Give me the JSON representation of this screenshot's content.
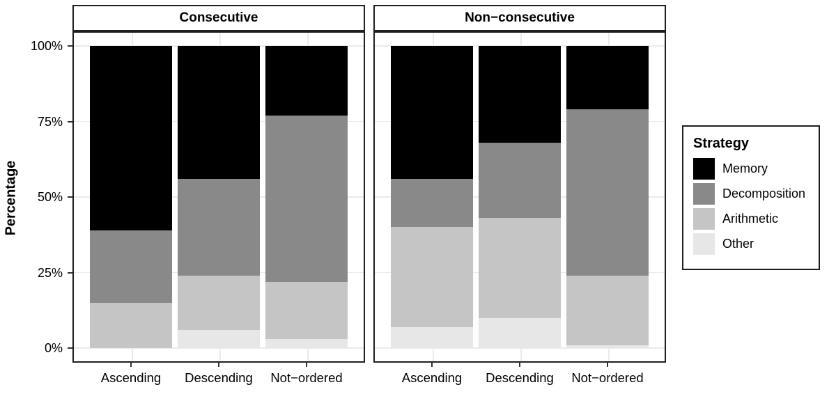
{
  "chart_data": {
    "type": "bar",
    "stacked": true,
    "units": "percent",
    "title": "",
    "ylabel": "Percentage",
    "xlabel": "",
    "ylim": [
      0,
      100
    ],
    "yticks": [
      0,
      25,
      50,
      75,
      100
    ],
    "ytick_labels": [
      "0%",
      "25%",
      "50%",
      "75%",
      "100%"
    ],
    "grid": "major horizontal lines and vertical category lines, light gray, no minor grid",
    "legend": {
      "title": "Strategy",
      "position": "right",
      "entries": [
        {
          "label": "Memory",
          "color": "#000000"
        },
        {
          "label": "Decomposition",
          "color": "#898989"
        },
        {
          "label": "Arithmetic",
          "color": "#c5c5c5"
        },
        {
          "label": "Other",
          "color": "#e7e7e7"
        }
      ]
    },
    "facets": [
      {
        "label": "Consecutive",
        "categories": [
          "Ascending",
          "Descending",
          "Not−ordered"
        ],
        "series": [
          {
            "name": "Memory",
            "values": [
              61,
              44,
              23
            ]
          },
          {
            "name": "Decomposition",
            "values": [
              24,
              32,
              55
            ]
          },
          {
            "name": "Arithmetic",
            "values": [
              15,
              18,
              19
            ]
          },
          {
            "name": "Other",
            "values": [
              0,
              6,
              3
            ]
          }
        ]
      },
      {
        "label": "Non−consecutive",
        "categories": [
          "Ascending",
          "Descending",
          "Not−ordered"
        ],
        "series": [
          {
            "name": "Memory",
            "values": [
              44,
              32,
              21
            ]
          },
          {
            "name": "Decomposition",
            "values": [
              16,
              25,
              55
            ]
          },
          {
            "name": "Arithmetic",
            "values": [
              33,
              33,
              23
            ]
          },
          {
            "name": "Other",
            "values": [
              7,
              10,
              1
            ]
          }
        ]
      }
    ],
    "colors": {
      "Memory": "#000000",
      "Decomposition": "#898989",
      "Arithmetic": "#c5c5c5",
      "Other": "#e7e7e7"
    },
    "style_colors": {
      "gridline": "#ebebeb",
      "panel_border": "#1f1f1f",
      "background": "#ffffff",
      "text": "#000000"
    }
  }
}
